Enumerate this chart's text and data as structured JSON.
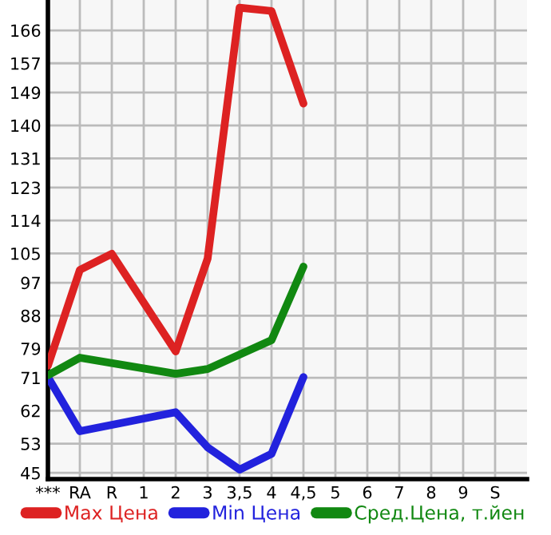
{
  "chart_data": {
    "type": "line",
    "categories": [
      "***",
      "RA",
      "R",
      "1",
      "2",
      "3",
      "3,5",
      "4",
      "4,5",
      "5",
      "6",
      "7",
      "8",
      "9",
      "S"
    ],
    "series": [
      {
        "name": "Max Цена",
        "color": "#dd2222",
        "values": [
          74.3,
          100.5,
          104.9,
          null,
          78.2,
          103.6,
          172.2,
          171.3,
          146,
          null,
          null,
          null,
          null,
          null,
          null
        ]
      },
      {
        "name": "Min Цена",
        "color": "#2222dd",
        "values": [
          71.2,
          56.4,
          null,
          null,
          61.6,
          52,
          45.9,
          50.2,
          71.2,
          null,
          null,
          null,
          null,
          null,
          null
        ]
      },
      {
        "name": "Сред.Цена, т.йен",
        "color": "#118811",
        "values": [
          71.7,
          76.5,
          null,
          null,
          72.1,
          73.4,
          null,
          81.3,
          101.4,
          null,
          null,
          null,
          null,
          null,
          null
        ]
      }
    ],
    "ylim": [
      43.3,
      174.3
    ],
    "yticks": [
      45,
      53,
      62,
      71,
      79,
      88,
      97,
      105,
      114,
      123,
      131,
      140,
      149,
      157,
      166
    ],
    "grid": true,
    "legend": "bottom",
    "marker": "none",
    "line_style": "solid"
  }
}
